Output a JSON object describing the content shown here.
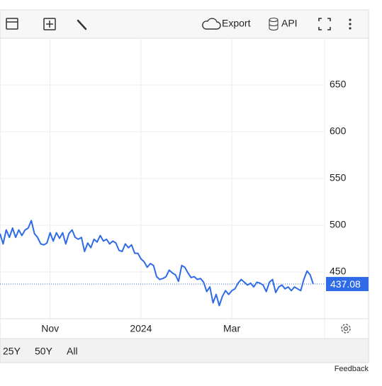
{
  "toolbar": {
    "export": "Export",
    "api": "API"
  },
  "range_buttons": [
    "25Y",
    "50Y",
    "All"
  ],
  "feedback": "Feedback",
  "chart_data": {
    "type": "line",
    "categories": [
      null,
      null,
      null,
      null,
      null,
      null,
      null,
      null,
      null,
      null,
      null,
      null,
      null,
      null,
      null,
      null,
      "Nov",
      null,
      null,
      null,
      null,
      null,
      null,
      null,
      null,
      null,
      null,
      null,
      null,
      null,
      null,
      null,
      null,
      null,
      null,
      null,
      null,
      null,
      null,
      null,
      null,
      null,
      null,
      null,
      null,
      "2024",
      null,
      null,
      null,
      null,
      null,
      null,
      null,
      null,
      null,
      null,
      null,
      null,
      null,
      null,
      null,
      null,
      null,
      null,
      null,
      null,
      null,
      null,
      null,
      null,
      null,
      null,
      null,
      null,
      "Mar",
      null,
      null,
      null,
      null,
      null,
      null,
      null,
      null,
      null,
      null,
      null,
      null,
      null,
      null,
      null,
      null,
      null,
      null,
      null,
      null,
      null,
      null,
      null,
      null,
      null,
      null
    ],
    "series": [
      {
        "color": "#2f6be6",
        "values": [
          491,
          480,
          495,
          487,
          497,
          487,
          495,
          489,
          495,
          497,
          505,
          491,
          487,
          480,
          479,
          481,
          492,
          483,
          492,
          486,
          492,
          480,
          491,
          495,
          487,
          485,
          487,
          472,
          481,
          476,
          485,
          482,
          489,
          483,
          485,
          480,
          483,
          481,
          473,
          472,
          480,
          476,
          479,
          470,
          470,
          464,
          461,
          455,
          459,
          457,
          445,
          442,
          443,
          445,
          452,
          449,
          447,
          440,
          457,
          455,
          449,
          444,
          445,
          442,
          443,
          439,
          429,
          434,
          417,
          426,
          414,
          424,
          430,
          426,
          430,
          432,
          438,
          442,
          439,
          436,
          438,
          434,
          439,
          438,
          436,
          429,
          439,
          442,
          428,
          434,
          436,
          432,
          434,
          430,
          434,
          432,
          430,
          442,
          451,
          447,
          437.08
        ]
      }
    ],
    "ylim": [
      400,
      700
    ],
    "yticks": [
      450,
      500,
      550,
      600,
      650
    ],
    "grid": true
  }
}
